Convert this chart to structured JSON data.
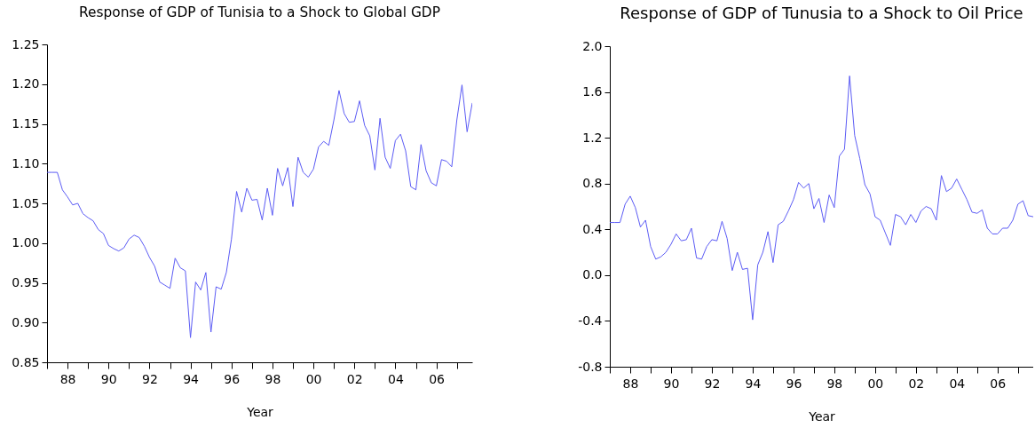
{
  "chart_data": [
    {
      "type": "line",
      "title": "Response of GDP of Tunisia to a Shock to Global GDP",
      "xlabel": "Year",
      "x": [
        1987,
        1987.25,
        1987.5,
        1987.75,
        1988,
        1988.25,
        1988.5,
        1988.75,
        1989,
        1989.25,
        1989.5,
        1989.75,
        1990,
        1990.25,
        1990.5,
        1990.75,
        1991,
        1991.25,
        1991.5,
        1991.75,
        1992,
        1992.25,
        1992.5,
        1992.75,
        1993,
        1993.25,
        1993.5,
        1993.75,
        1994,
        1994.25,
        1994.5,
        1994.75,
        1995,
        1995.25,
        1995.5,
        1995.75,
        1996,
        1996.25,
        1996.5,
        1996.75,
        1997,
        1997.25,
        1997.5,
        1997.75,
        1998,
        1998.25,
        1998.5,
        1998.75,
        1999,
        1999.25,
        1999.5,
        1999.75,
        2000,
        2000.25,
        2000.5,
        2000.75,
        2001,
        2001.25,
        2001.5,
        2001.75,
        2002,
        2002.25,
        2002.5,
        2002.75,
        2003,
        2003.25,
        2003.5,
        2003.75,
        2004,
        2004.25,
        2004.5,
        2004.75,
        2005,
        2005.25,
        2005.5,
        2005.75,
        2006,
        2006.25,
        2006.5,
        2006.75,
        2007,
        2007.25,
        2007.5,
        2007.75
      ],
      "series": [
        {
          "color": "#5c5cf5",
          "values": [
            1.089,
            1.089,
            1.089,
            1.067,
            1.058,
            1.048,
            1.05,
            1.037,
            1.032,
            1.028,
            1.017,
            1.012,
            0.997,
            0.993,
            0.99,
            0.994,
            1.005,
            1.01,
            1.007,
            0.996,
            0.982,
            0.971,
            0.951,
            0.947,
            0.943,
            0.981,
            0.969,
            0.965,
            0.881,
            0.951,
            0.941,
            0.963,
            0.888,
            0.945,
            0.942,
            0.963,
            1.005,
            1.065,
            1.039,
            1.069,
            1.054,
            1.055,
            1.029,
            1.069,
            1.035,
            1.094,
            1.072,
            1.095,
            1.046,
            1.108,
            1.089,
            1.083,
            1.093,
            1.121,
            1.128,
            1.123,
            1.155,
            1.192,
            1.163,
            1.152,
            1.153,
            1.179,
            1.148,
            1.135,
            1.092,
            1.157,
            1.108,
            1.094,
            1.129,
            1.137,
            1.116,
            1.071,
            1.067,
            1.124,
            1.091,
            1.076,
            1.072,
            1.105,
            1.103,
            1.096,
            1.155,
            1.199,
            1.14,
            1.176
          ]
        }
      ],
      "xlim": [
        1987,
        2007.75
      ],
      "xticks": [
        {
          "value": 1987,
          "label": null
        },
        {
          "value": 1988,
          "label": "88"
        },
        {
          "value": 1989,
          "label": null
        },
        {
          "value": 1990,
          "label": "90"
        },
        {
          "value": 1991,
          "label": null
        },
        {
          "value": 1992,
          "label": "92"
        },
        {
          "value": 1993,
          "label": null
        },
        {
          "value": 1994,
          "label": "94"
        },
        {
          "value": 1995,
          "label": null
        },
        {
          "value": 1996,
          "label": "96"
        },
        {
          "value": 1997,
          "label": null
        },
        {
          "value": 1998,
          "label": "98"
        },
        {
          "value": 1999,
          "label": null
        },
        {
          "value": 2000,
          "label": "00"
        },
        {
          "value": 2001,
          "label": null
        },
        {
          "value": 2002,
          "label": "02"
        },
        {
          "value": 2003,
          "label": null
        },
        {
          "value": 2004,
          "label": "04"
        },
        {
          "value": 2005,
          "label": null
        },
        {
          "value": 2006,
          "label": "06"
        },
        {
          "value": 2007,
          "label": null
        }
      ],
      "ylim": [
        0.85,
        1.25
      ],
      "yticks": [
        0.85,
        {
          "value": 0.9,
          "label": "0.90"
        },
        0.95,
        {
          "value": 1,
          "label": "1.00"
        },
        1.05,
        {
          "value": 1.1,
          "label": "1.10"
        },
        1.15,
        {
          "value": 1.2,
          "label": "1.20"
        },
        1.25
      ]
    },
    {
      "type": "line",
      "title": "Response of GDP of Tunusia to a Shock to Oil Price",
      "xlabel": "Year",
      "x": [
        1987,
        1987.25,
        1987.5,
        1987.75,
        1988,
        1988.25,
        1988.5,
        1988.75,
        1989,
        1989.25,
        1989.5,
        1989.75,
        1990,
        1990.25,
        1990.5,
        1990.75,
        1991,
        1991.25,
        1991.5,
        1991.75,
        1992,
        1992.25,
        1992.5,
        1992.75,
        1993,
        1993.25,
        1993.5,
        1993.75,
        1994,
        1994.25,
        1994.5,
        1994.75,
        1995,
        1995.25,
        1995.5,
        1995.75,
        1996,
        1996.25,
        1996.5,
        1996.75,
        1997,
        1997.25,
        1997.5,
        1997.75,
        1998,
        1998.25,
        1998.5,
        1998.75,
        1999,
        1999.25,
        1999.5,
        1999.75,
        2000,
        2000.25,
        2000.5,
        2000.75,
        2001,
        2001.25,
        2001.5,
        2001.75,
        2002,
        2002.25,
        2002.5,
        2002.75,
        2003,
        2003.25,
        2003.5,
        2003.75,
        2004,
        2004.25,
        2004.5,
        2004.75,
        2005,
        2005.25,
        2005.5,
        2005.75,
        2006,
        2006.25,
        2006.5,
        2006.75,
        2007,
        2007.25,
        2007.5,
        2007.75
      ],
      "series": [
        {
          "color": "#5c5cf5",
          "values": [
            0.46,
            0.46,
            0.46,
            0.62,
            0.69,
            0.59,
            0.42,
            0.48,
            0.25,
            0.14,
            0.16,
            0.2,
            0.27,
            0.36,
            0.3,
            0.31,
            0.41,
            0.15,
            0.14,
            0.25,
            0.31,
            0.3,
            0.47,
            0.32,
            0.04,
            0.2,
            0.05,
            0.06,
            -0.39,
            0.09,
            0.2,
            0.38,
            0.11,
            0.44,
            0.47,
            0.56,
            0.66,
            0.81,
            0.76,
            0.8,
            0.58,
            0.67,
            0.46,
            0.7,
            0.59,
            1.04,
            1.1,
            1.74,
            1.22,
            1.02,
            0.79,
            0.71,
            0.51,
            0.48,
            0.37,
            0.26,
            0.53,
            0.51,
            0.44,
            0.53,
            0.46,
            0.56,
            0.6,
            0.58,
            0.48,
            0.87,
            0.73,
            0.76,
            0.84,
            0.75,
            0.66,
            0.55,
            0.54,
            0.57,
            0.41,
            0.36,
            0.36,
            0.41,
            0.41,
            0.48,
            0.62,
            0.65,
            0.52,
            0.51
          ]
        }
      ],
      "xlim": [
        1987,
        2007.75
      ],
      "xticks": [
        {
          "value": 1987,
          "label": null
        },
        {
          "value": 1988,
          "label": "88"
        },
        {
          "value": 1989,
          "label": null
        },
        {
          "value": 1990,
          "label": "90"
        },
        {
          "value": 1991,
          "label": null
        },
        {
          "value": 1992,
          "label": "92"
        },
        {
          "value": 1993,
          "label": null
        },
        {
          "value": 1994,
          "label": "94"
        },
        {
          "value": 1995,
          "label": null
        },
        {
          "value": 1996,
          "label": "96"
        },
        {
          "value": 1997,
          "label": null
        },
        {
          "value": 1998,
          "label": "98"
        },
        {
          "value": 1999,
          "label": null
        },
        {
          "value": 2000,
          "label": "00"
        },
        {
          "value": 2001,
          "label": null
        },
        {
          "value": 2002,
          "label": "02"
        },
        {
          "value": 2003,
          "label": null
        },
        {
          "value": 2004,
          "label": "04"
        },
        {
          "value": 2005,
          "label": null
        },
        {
          "value": 2006,
          "label": "06"
        },
        {
          "value": 2007,
          "label": null
        }
      ],
      "ylim": [
        -0.8,
        2.0
      ],
      "yticks": [
        -0.8,
        -0.4,
        {
          "value": 0,
          "label": "0.0"
        },
        0.4,
        0.8,
        1.2,
        1.6,
        {
          "value": 2,
          "label": "2.0"
        }
      ]
    }
  ]
}
